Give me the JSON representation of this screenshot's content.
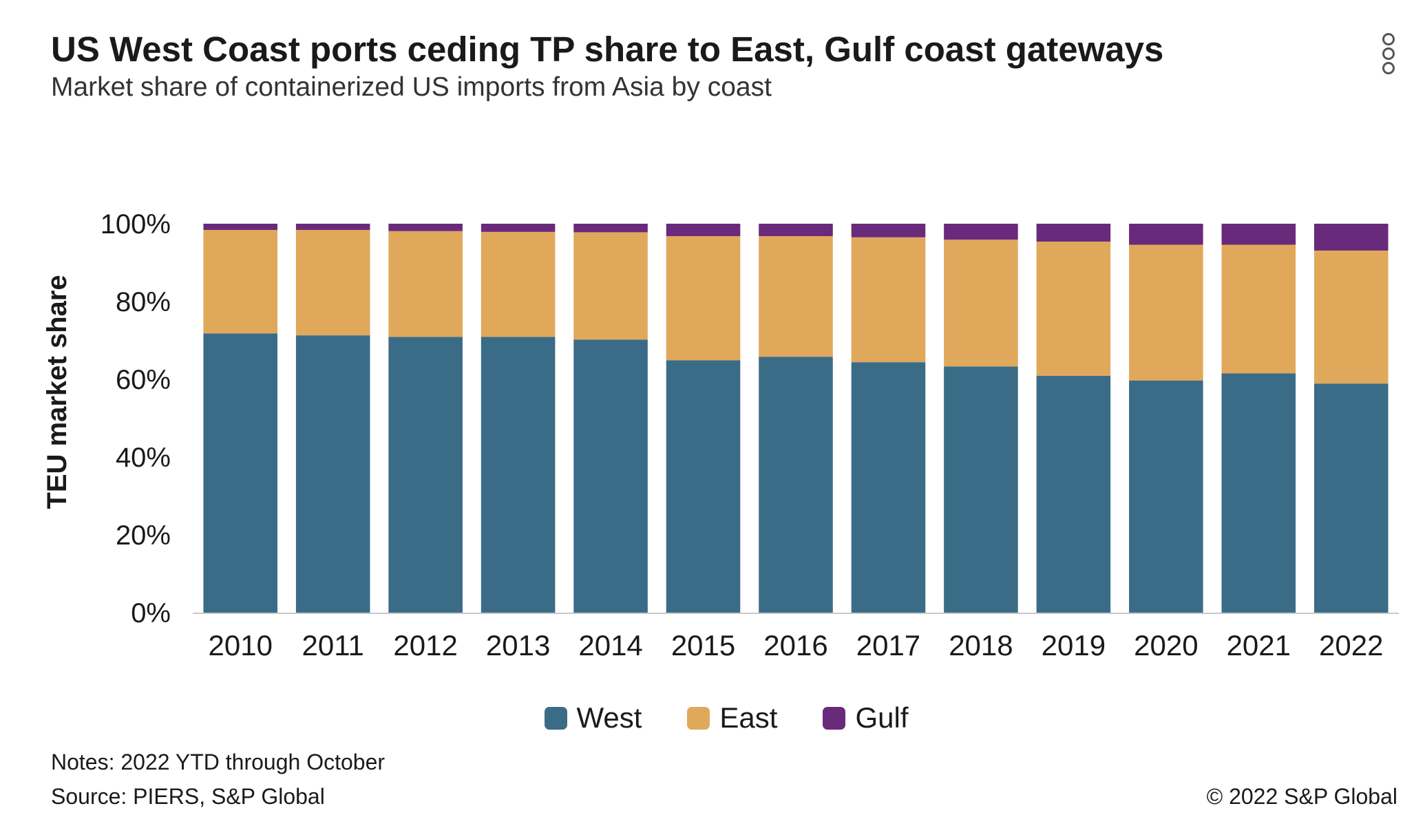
{
  "header": {
    "title": "US West Coast ports ceding TP share to East, Gulf coast gateways",
    "subtitle": "Market share of containerized US imports from Asia by coast"
  },
  "menu": {
    "icon": "more-vertical-icon"
  },
  "chart_data": {
    "type": "bar",
    "stacked": true,
    "categories": [
      "2010",
      "2011",
      "2012",
      "2013",
      "2014",
      "2015",
      "2016",
      "2017",
      "2018",
      "2019",
      "2020",
      "2021",
      "2022"
    ],
    "series": [
      {
        "name": "West",
        "color": "#3b6c87",
        "values": [
          71.8,
          71.3,
          70.9,
          70.9,
          70.2,
          64.9,
          65.8,
          64.4,
          63.3,
          60.9,
          59.7,
          61.5,
          58.9
        ]
      },
      {
        "name": "East",
        "color": "#e0a85b",
        "values": [
          26.6,
          27.1,
          27.2,
          27.0,
          27.6,
          31.9,
          31.0,
          32.1,
          32.6,
          34.5,
          34.9,
          33.1,
          34.2
        ]
      },
      {
        "name": "Gulf",
        "color": "#6a2a7c",
        "values": [
          1.6,
          1.6,
          1.9,
          2.1,
          2.2,
          3.2,
          3.2,
          3.5,
          4.1,
          4.6,
          5.4,
          5.4,
          6.9
        ]
      }
    ],
    "ylabel": "TEU market share",
    "xlabel": "",
    "ylim": [
      0,
      100
    ],
    "yticks": [
      "0%",
      "20%",
      "40%",
      "60%",
      "80%",
      "100%"
    ],
    "grid": false,
    "legend_position": "bottom"
  },
  "footer": {
    "notes": "Notes: 2022 YTD through October",
    "source": "Source: PIERS, S&P Global",
    "copyright": "© 2022 S&P Global"
  }
}
